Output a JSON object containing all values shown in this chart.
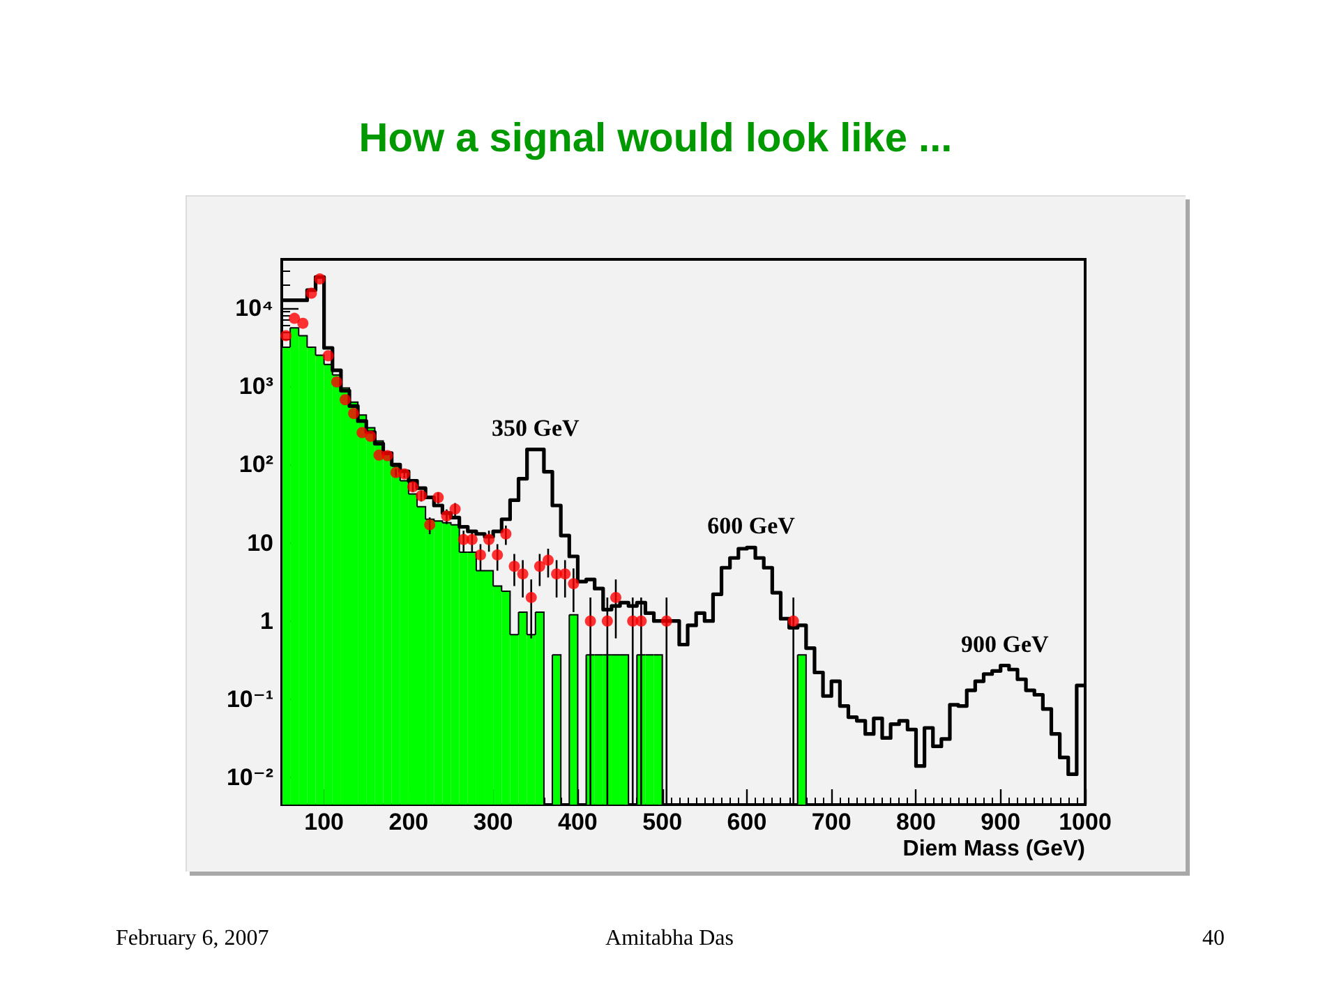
{
  "chart_data": {
    "type": "bar",
    "title": "How a signal would look like ...",
    "xlabel": "Diem Mass (GeV)",
    "series": [
      {
        "type": "bar",
        "color": "#00ff00",
        "x": [
          55,
          65,
          75,
          85,
          95,
          105,
          115,
          125,
          135,
          145,
          155,
          165,
          175,
          185,
          195,
          205,
          215,
          225,
          235,
          245,
          255,
          265,
          275,
          285,
          295,
          305,
          315,
          325,
          335,
          345,
          355,
          375,
          395,
          415,
          425,
          435,
          445,
          455,
          475,
          485,
          495,
          665
        ],
        "values": [
          3160,
          5600,
          4450,
          3160,
          2500,
          1900,
          1400,
          950,
          630,
          430,
          295,
          200,
          135,
          95,
          62,
          42,
          29,
          20,
          19,
          18,
          17,
          7.6,
          7.6,
          4.4,
          4.4,
          2.8,
          2.4,
          0.67,
          1.3,
          0.67,
          1.3,
          0.37,
          1.2,
          0.37,
          0.37,
          0.37,
          0.37,
          0.37,
          0.37,
          0.37,
          0.37,
          0.37
        ]
      },
      {
        "type": "step",
        "color": "#000000",
        "x": [
          50,
          55,
          65,
          75,
          85,
          95,
          105,
          115,
          125,
          135,
          145,
          155,
          165,
          175,
          185,
          195,
          205,
          215,
          225,
          235,
          245,
          255,
          265,
          275,
          285,
          295,
          305,
          315,
          325,
          335,
          345,
          355,
          365,
          375,
          385,
          395,
          405,
          415,
          425,
          435,
          445,
          455,
          465,
          475,
          485,
          495,
          505,
          515,
          525,
          535,
          545,
          555,
          565,
          575,
          585,
          595,
          605,
          615,
          625,
          635,
          645,
          655,
          665,
          675,
          685,
          695,
          705,
          715,
          725,
          735,
          745,
          755,
          765,
          775,
          785,
          795,
          805,
          815,
          825,
          835,
          845,
          855,
          865,
          875,
          885,
          895,
          905,
          915,
          925,
          935,
          945,
          955,
          965,
          975,
          985,
          995,
          1000
        ],
        "values": [
          12600,
          12600,
          12600,
          12600,
          17000,
          25000,
          3100,
          1600,
          880,
          560,
          360,
          260,
          185,
          140,
          100,
          82,
          62,
          50,
          38,
          30,
          24,
          21,
          16,
          14,
          13,
          12,
          14,
          20,
          35,
          66,
          156,
          156,
          81,
          30,
          12.4,
          6.7,
          3.2,
          3.4,
          2.6,
          1.4,
          1.56,
          1.72,
          1.56,
          1.72,
          1.26,
          1.0,
          1.0,
          1.0,
          0.5,
          0.88,
          1.26,
          1.0,
          2.2,
          4.8,
          6.4,
          8.4,
          8.7,
          6.4,
          4.8,
          2.3,
          1.07,
          0.82,
          0.88,
          0.45,
          0.22,
          0.11,
          0.17,
          0.082,
          0.059,
          0.053,
          0.036,
          0.057,
          0.032,
          0.048,
          0.053,
          0.041,
          0.014,
          0.043,
          0.025,
          0.031,
          0.085,
          0.082,
          0.13,
          0.17,
          0.21,
          0.23,
          0.27,
          0.24,
          0.18,
          0.13,
          0.114,
          0.075,
          0.036,
          0.018,
          0.011,
          0.15,
          0.15
        ]
      },
      {
        "type": "scatter",
        "color": "#ff0000",
        "marker": "circle",
        "x": [
          55,
          65,
          75,
          85,
          95,
          105,
          115,
          125,
          135,
          145,
          155,
          165,
          175,
          185,
          195,
          205,
          215,
          225,
          235,
          245,
          255,
          265,
          275,
          285,
          295,
          305,
          315,
          325,
          335,
          345,
          355,
          365,
          375,
          385,
          395,
          415,
          435,
          445,
          465,
          475,
          505,
          655
        ],
        "values": [
          4450,
          7400,
          6400,
          15500,
          23600,
          2460,
          1140,
          675,
          450,
          256,
          230,
          132,
          130,
          79,
          76,
          52,
          40,
          17,
          38,
          22,
          27,
          11,
          11,
          7,
          11,
          7,
          13,
          5,
          4,
          2,
          5,
          6,
          4,
          4,
          3,
          1,
          1,
          2,
          1,
          1,
          1,
          1
        ],
        "errors": [
          null,
          null,
          null,
          null,
          null,
          null,
          null,
          null,
          null,
          null,
          null,
          null,
          null,
          8.9,
          8.7,
          7.2,
          6.3,
          4.1,
          6.2,
          4.7,
          5.2,
          3.3,
          3.3,
          2.6,
          3.3,
          2.6,
          3.6,
          2.2,
          2,
          1.4,
          2.2,
          2.4,
          2,
          2,
          1.7,
          [
            0.0045,
            2
          ],
          [
            0.0045,
            2
          ],
          1.4,
          [
            0.0045,
            2
          ],
          [
            0.0045,
            2
          ],
          [
            0.0045,
            2
          ],
          [
            0.0045,
            2
          ]
        ]
      }
    ],
    "xlim": [
      50,
      1000
    ],
    "xticks": [
      100,
      200,
      300,
      {
        "value": 360,
        "label": null
      },
      {
        "value": 370,
        "label": null
      },
      {
        "value": 380,
        "label": null
      },
      {
        "value": 390,
        "label": null
      },
      400,
      {
        "value": 410,
        "label": null
      },
      {
        "value": 460,
        "label": null
      },
      {
        "value": 470,
        "label": null
      },
      500,
      {
        "value": 510,
        "label": null
      },
      {
        "value": 520,
        "label": null
      },
      {
        "value": 530,
        "label": null
      },
      {
        "value": 540,
        "label": null
      },
      {
        "value": 550,
        "label": null
      },
      {
        "value": 560,
        "label": null
      },
      {
        "value": 570,
        "label": null
      },
      {
        "value": 580,
        "label": null
      },
      {
        "value": 590,
        "label": null
      },
      600,
      {
        "value": 610,
        "label": null
      },
      {
        "value": 620,
        "label": null
      },
      {
        "value": 630,
        "label": null
      },
      {
        "value": 640,
        "label": null
      },
      {
        "value": 650,
        "label": null
      },
      {
        "value": 660,
        "label": null
      },
      {
        "value": 670,
        "label": null
      },
      {
        "value": 680,
        "label": null
      },
      {
        "value": 690,
        "label": null
      },
      700,
      {
        "value": 710,
        "label": null
      },
      {
        "value": 720,
        "label": null
      },
      {
        "value": 730,
        "label": null
      },
      {
        "value": 740,
        "label": null
      },
      {
        "value": 750,
        "label": null
      },
      {
        "value": 760,
        "label": null
      },
      {
        "value": 770,
        "label": null
      },
      {
        "value": 780,
        "label": null
      },
      {
        "value": 790,
        "label": null
      },
      800,
      {
        "value": 810,
        "label": null
      },
      {
        "value": 820,
        "label": null
      },
      {
        "value": 830,
        "label": null
      },
      {
        "value": 840,
        "label": null
      },
      {
        "value": 850,
        "label": null
      },
      {
        "value": 860,
        "label": null
      },
      {
        "value": 870,
        "label": null
      },
      {
        "value": 880,
        "label": null
      },
      {
        "value": 890,
        "label": null
      },
      900,
      {
        "value": 910,
        "label": null
      },
      {
        "value": 920,
        "label": null
      },
      {
        "value": 930,
        "label": null
      },
      {
        "value": 940,
        "label": null
      },
      {
        "value": 950,
        "label": null
      },
      {
        "value": 960,
        "label": null
      },
      {
        "value": 970,
        "label": null
      },
      {
        "value": 980,
        "label": null
      },
      {
        "value": 990,
        "label": null
      },
      1000
    ],
    "ylim": [
      0.0045,
      42000
    ],
    "yticks": [
      {
        "value": 0.01,
        "label": "10⁻²"
      },
      {
        "value": 0.1,
        "label": "10⁻¹"
      },
      1,
      10,
      {
        "value": 100,
        "label": "10²"
      },
      {
        "value": 1000,
        "label": "10³"
      },
      {
        "value": 4000,
        "label": null
      },
      {
        "value": 5000,
        "label": null
      },
      {
        "value": 6000,
        "label": null
      },
      {
        "value": 7000,
        "label": null
      },
      {
        "value": 8000,
        "label": null
      },
      {
        "value": 9000,
        "label": null
      },
      {
        "value": 10000,
        "label": "10⁴"
      },
      {
        "value": 20000,
        "label": null
      },
      {
        "value": 30000,
        "label": null
      }
    ],
    "log": true,
    "annotations": [
      {
        "text": "350 GeV",
        "x": 350,
        "y": 156
      },
      {
        "text": "600 GeV",
        "x": 605,
        "y": 8.7
      },
      {
        "text": "900 GeV",
        "x": 905,
        "y": 0.27
      },
      "February 6, 2007",
      "Amitabha Das",
      "40"
    ]
  }
}
